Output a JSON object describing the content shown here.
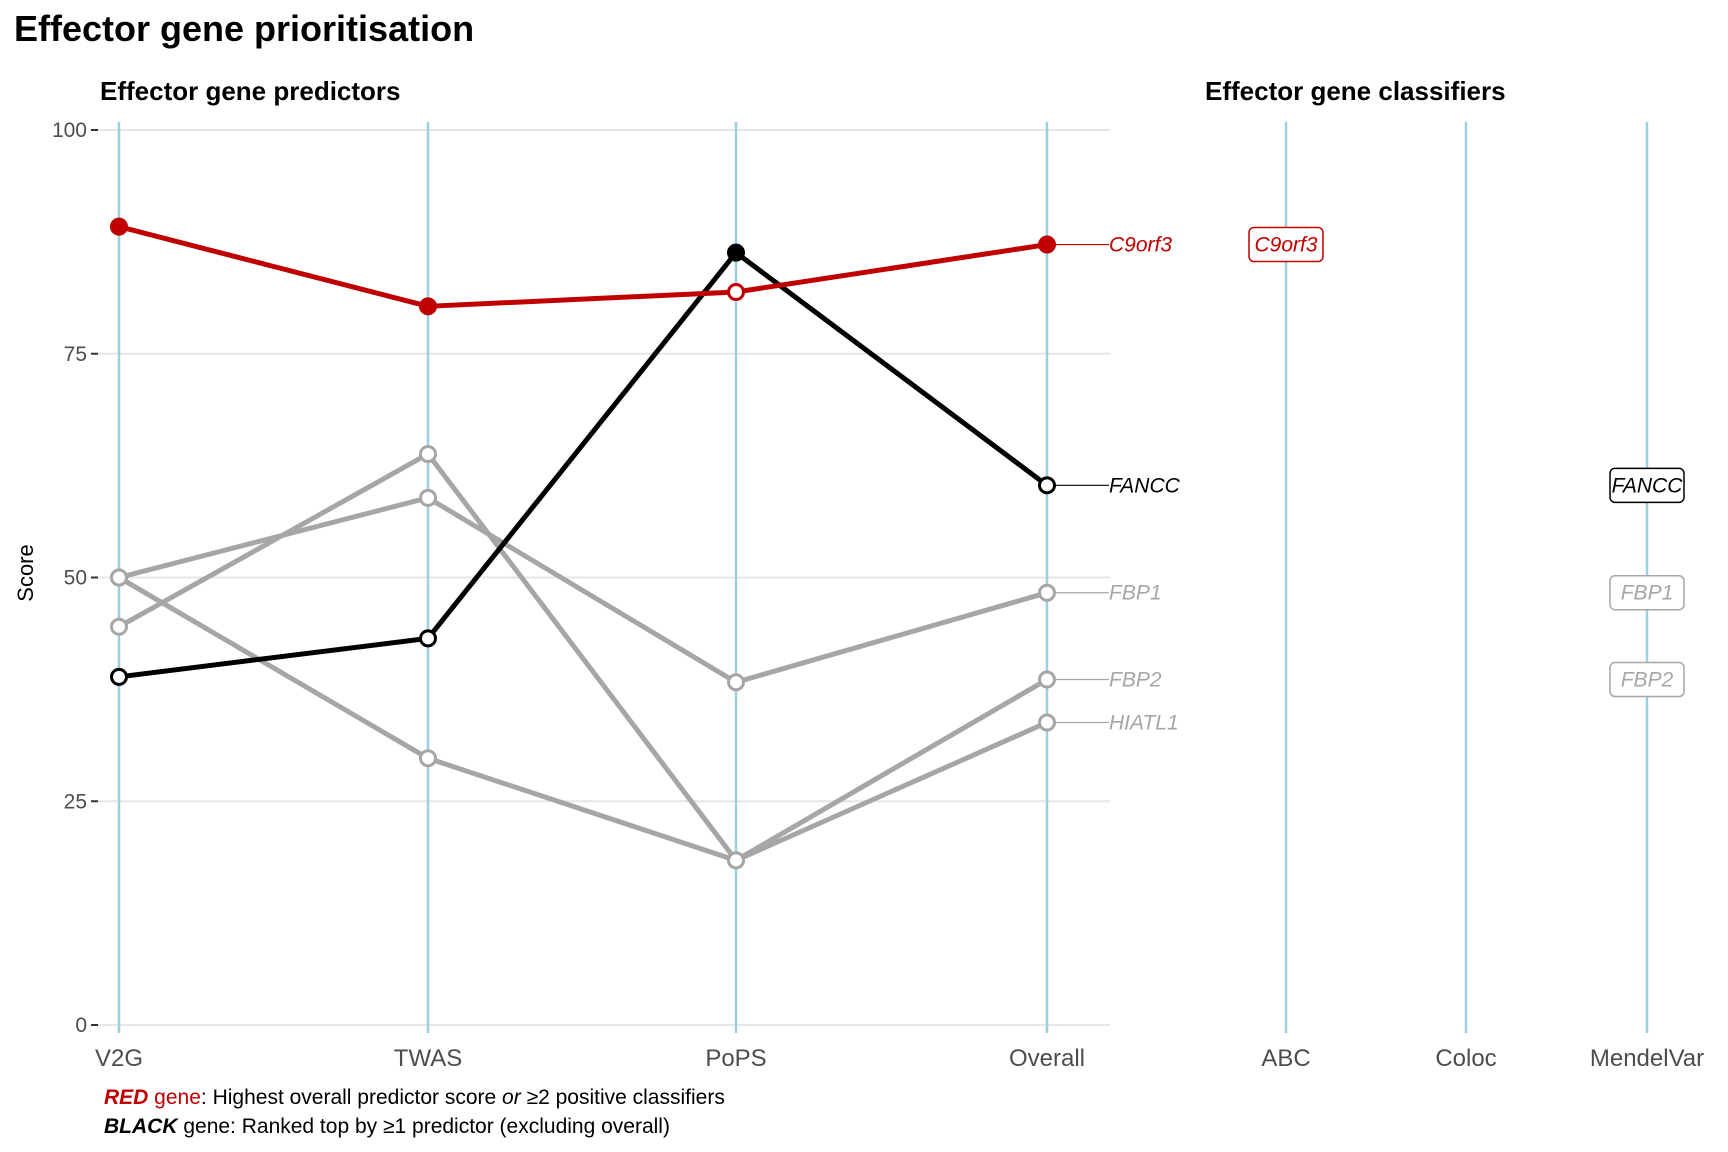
{
  "title": "Effector gene prioritisation",
  "colors": {
    "red": "#c00000",
    "black": "#000000",
    "grey": "#a6a6a6",
    "vline": "#9ecfe0",
    "grid": "#e6e6e6"
  },
  "chart_data": [
    {
      "type": "line",
      "title": "Effector gene predictors",
      "ylabel": "Score",
      "xlabel": "",
      "ylim": [
        0,
        100
      ],
      "yticks": [
        "0",
        "25",
        "50",
        "75",
        "100"
      ],
      "categories": [
        "V2G",
        "TWAS",
        "PoPS",
        "Overall"
      ],
      "grid": true,
      "series": [
        {
          "name": "C9orf3",
          "color": "red",
          "values": [
            89.2,
            80.3,
            81.9,
            87.2
          ],
          "filled": [
            true,
            true,
            false,
            true
          ]
        },
        {
          "name": "FANCC",
          "color": "black",
          "values": [
            38.9,
            43.2,
            86.3,
            60.3
          ],
          "filled": [
            false,
            false,
            true,
            false
          ]
        },
        {
          "name": "FBP1",
          "color": "grey",
          "values": [
            50.0,
            58.9,
            38.3,
            48.3
          ],
          "filled": [
            false,
            false,
            false,
            false
          ]
        },
        {
          "name": "FBP2",
          "color": "grey",
          "values": [
            44.5,
            63.8,
            18.4,
            38.6
          ],
          "filled": [
            false,
            false,
            false,
            false
          ]
        },
        {
          "name": "HIATL1",
          "color": "grey",
          "values": [
            50.0,
            29.8,
            18.4,
            33.8
          ],
          "filled": [
            false,
            false,
            false,
            false
          ]
        }
      ]
    },
    {
      "type": "table",
      "title": "Effector gene classifiers",
      "categories": [
        "ABC",
        "Coloc",
        "MendelVar"
      ],
      "positives": [
        {
          "classifier": "ABC",
          "gene": "C9orf3",
          "color": "red"
        },
        {
          "classifier": "MendelVar",
          "gene": "FBP1",
          "color": "grey"
        },
        {
          "classifier": "MendelVar",
          "gene": "FBP2",
          "color": "grey"
        },
        {
          "classifier": "MendelVar",
          "gene": "FANCC",
          "color": "black"
        }
      ]
    }
  ],
  "footnote": {
    "red_word": "RED",
    "red_gene": " gene",
    "red_text": ": Highest overall predictor score ",
    "red_or": "or",
    "red_text2": " ≥2 positive classifiers",
    "black_word": "BLACK",
    "black_text": " gene: Ranked top by ≥1 predictor (excluding overall)"
  }
}
